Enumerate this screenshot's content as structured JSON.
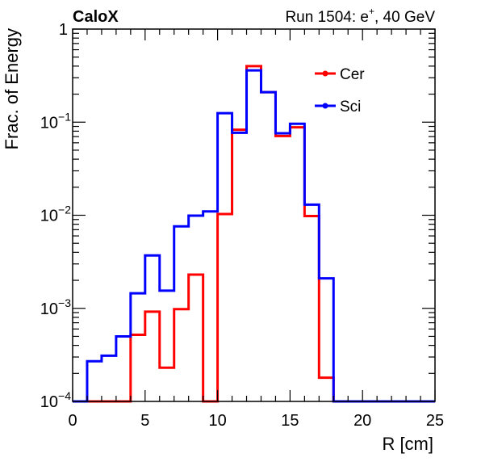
{
  "chart_data": {
    "type": "line",
    "step": true,
    "header": {
      "left": "CaloX",
      "right_prefix": "Run 1504: e",
      "right_sup": "+",
      "right_suffix": ", 40 GeV"
    },
    "xlabel": "R [cm]",
    "ylabel": "Frac. of Energy",
    "xlim": [
      0,
      25
    ],
    "ylim": [
      0.0001,
      1
    ],
    "yscale": "log",
    "xticks": [
      0,
      5,
      10,
      15,
      20,
      25
    ],
    "yticks": [
      {
        "value": 1,
        "base": "1",
        "exp": ""
      },
      {
        "value": 0.1,
        "base": "10",
        "exp": "−1"
      },
      {
        "value": 0.01,
        "base": "10",
        "exp": "−2"
      },
      {
        "value": 0.001,
        "base": "10",
        "exp": "−3"
      },
      {
        "value": 0.0001,
        "base": "10",
        "exp": "−4"
      }
    ],
    "grid": false,
    "legend_position": "top-right",
    "bin_edges": [
      0,
      1,
      2,
      3,
      4,
      5,
      6,
      7,
      8,
      9,
      10,
      11,
      12,
      13,
      14,
      15,
      16,
      17,
      18,
      19,
      20,
      21,
      22,
      23,
      24,
      25
    ],
    "series": [
      {
        "name": "Cer",
        "color": "#ff0000",
        "values": [
          0,
          0,
          0,
          0,
          0.00052,
          0.00092,
          0.00023,
          0.00098,
          0.0023,
          0,
          0.0103,
          0.083,
          0.4,
          0.21,
          0.071,
          0.088,
          0.0098,
          0.00018,
          0,
          0,
          0,
          0,
          0,
          0,
          0
        ]
      },
      {
        "name": "Sci",
        "color": "#0000ff",
        "values": [
          0,
          0.00027,
          0.00031,
          0.0005,
          0.00145,
          0.0037,
          0.00155,
          0.0076,
          0.0099,
          0.011,
          0.125,
          0.077,
          0.36,
          0.21,
          0.076,
          0.096,
          0.013,
          0.0021,
          0,
          0,
          0,
          0,
          0,
          0,
          0
        ]
      }
    ]
  }
}
